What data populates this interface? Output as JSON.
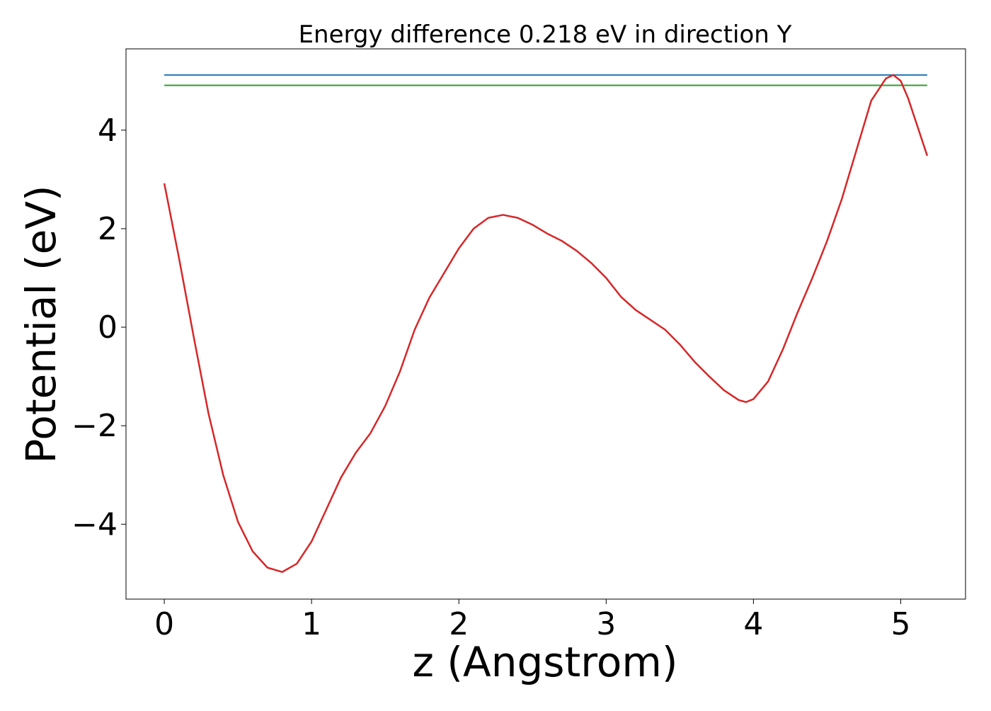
{
  "chart_data": {
    "type": "line",
    "title": "Energy difference 0.218 eV in direction Y",
    "xlabel": "z (Angstrom)",
    "ylabel": "Potential (eV)",
    "xlim": [
      -0.26,
      5.44
    ],
    "ylim": [
      -5.52,
      5.65
    ],
    "x_ticks": [
      0,
      1,
      2,
      3,
      4,
      5
    ],
    "y_ticks": [
      -4,
      -2,
      0,
      2,
      4
    ],
    "x_tick_labels": [
      "0",
      "1",
      "2",
      "3",
      "4",
      "5"
    ],
    "y_tick_labels": [
      "−4",
      "−2",
      "0",
      "2",
      "4"
    ],
    "grid": false,
    "series": [
      {
        "color": "#d62728",
        "x": [
          0,
          0.1,
          0.2,
          0.3,
          0.4,
          0.5,
          0.6,
          0.7,
          0.8,
          0.9,
          1.0,
          1.1,
          1.2,
          1.3,
          1.4,
          1.5,
          1.6,
          1.7,
          1.8,
          1.9,
          2.0,
          2.1,
          2.2,
          2.3,
          2.4,
          2.5,
          2.6,
          2.7,
          2.8,
          2.9,
          3.0,
          3.1,
          3.2,
          3.3,
          3.4,
          3.5,
          3.6,
          3.7,
          3.8,
          3.9,
          3.95,
          4.0,
          4.1,
          4.2,
          4.3,
          4.4,
          4.5,
          4.6,
          4.7,
          4.8,
          4.9,
          4.95,
          5.0,
          5.05,
          5.1,
          5.18
        ],
        "y": [
          2.92,
          1.4,
          -0.2,
          -1.75,
          -3.0,
          -3.95,
          -4.55,
          -4.88,
          -4.97,
          -4.8,
          -4.35,
          -3.7,
          -3.05,
          -2.55,
          -2.15,
          -1.6,
          -0.9,
          -0.05,
          0.6,
          1.1,
          1.6,
          2.0,
          2.22,
          2.28,
          2.22,
          2.08,
          1.9,
          1.75,
          1.55,
          1.3,
          1.0,
          0.62,
          0.35,
          0.15,
          -0.05,
          -0.35,
          -0.7,
          -1.0,
          -1.28,
          -1.48,
          -1.52,
          -1.46,
          -1.1,
          -0.45,
          0.3,
          1.0,
          1.75,
          2.6,
          3.6,
          4.6,
          5.05,
          5.12,
          5.0,
          4.65,
          4.2,
          3.48
        ]
      },
      {
        "color": "#1f77b4",
        "x": [
          0,
          5.18
        ],
        "y": [
          5.12,
          5.12
        ]
      },
      {
        "color": "#2ca02c",
        "x": [
          0,
          5.18
        ],
        "y": [
          4.91,
          4.91
        ]
      }
    ]
  }
}
